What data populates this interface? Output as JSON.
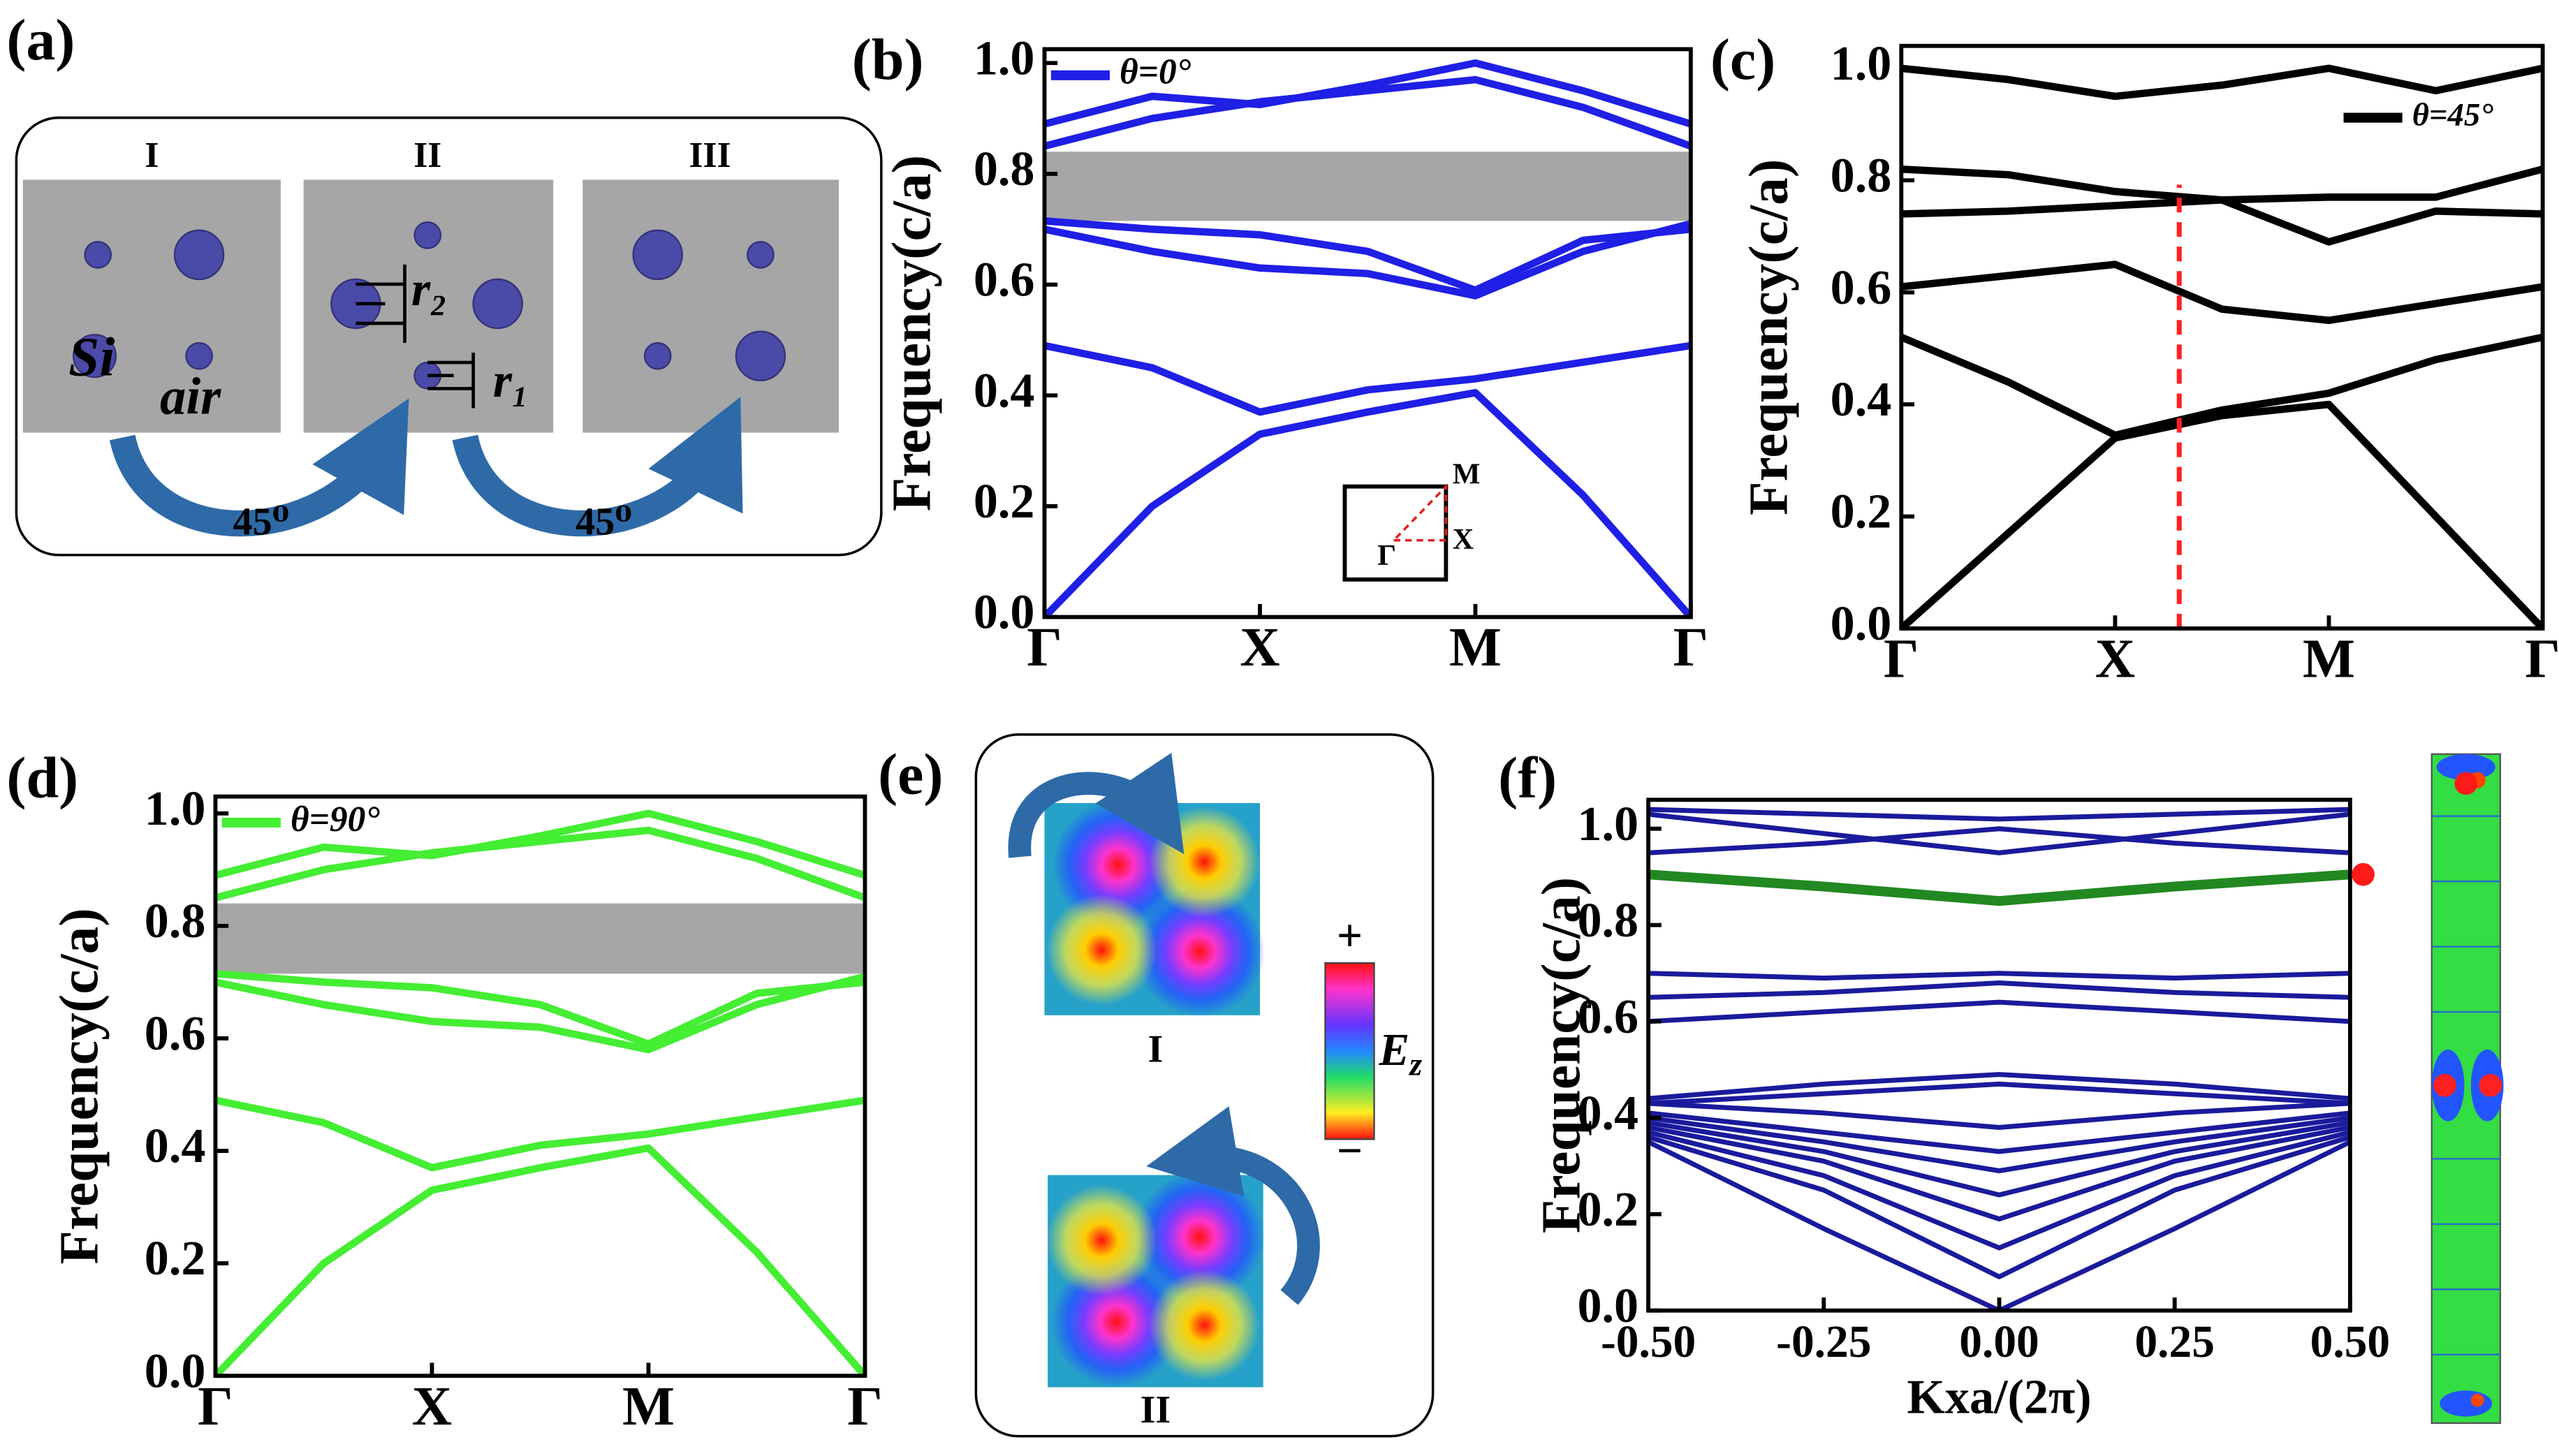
{
  "diagram_a": {
    "panel_label": "(a)",
    "cells": [
      "I",
      "II",
      "III"
    ],
    "material": "Si",
    "background": "air",
    "radius_labels": [
      "r₂",
      "r₁"
    ],
    "rotation_labels": [
      "45⁰",
      "45⁰"
    ]
  },
  "diagram_e": {
    "panel_label": "(e)",
    "maps": [
      "I",
      "II"
    ],
    "colorbar_max": "+",
    "colorbar_min": "−",
    "colorbar_label": "E",
    "colorbar_label_sub": "z"
  },
  "chart_data": [
    {
      "type": "line",
      "panel_label": "(b)",
      "y_label": "Frequency(c/a)",
      "legend_label": "θ=0°",
      "legend": "upper left",
      "color": "#1f1fe6",
      "x": [
        0,
        5,
        10,
        15,
        20,
        25,
        30
      ],
      "xlim": [
        0,
        30
      ],
      "xticks": [
        {
          "value": 0,
          "label": "Γ"
        },
        {
          "value": 10,
          "label": "X"
        },
        {
          "value": 20,
          "label": "M"
        },
        {
          "value": 30,
          "label": "Γ"
        }
      ],
      "ylim": [
        0,
        1.025
      ],
      "yticks": [
        {
          "value": 0,
          "label": "0.0"
        },
        {
          "value": 0.2,
          "label": "0.2"
        },
        {
          "value": 0.4,
          "label": "0.4"
        },
        {
          "value": 0.6,
          "label": "0.6"
        },
        {
          "value": 0.8,
          "label": "0.8"
        },
        {
          "value": 1,
          "label": "1.0"
        }
      ],
      "gap": [
        0.715,
        0.84
      ],
      "inset": [
        "M",
        "X",
        "Γ"
      ],
      "series": [
        {
          "values": [
            0,
            0.2,
            0.33,
            0.37,
            0.405,
            0.22,
            0
          ]
        },
        {
          "values": [
            0.49,
            0.45,
            0.37,
            0.41,
            0.43,
            0.46,
            0.49
          ]
        },
        {
          "values": [
            0.7,
            0.66,
            0.63,
            0.62,
            0.58,
            0.66,
            0.71
          ]
        },
        {
          "values": [
            0.715,
            0.7,
            0.69,
            0.66,
            0.59,
            0.68,
            0.7
          ]
        },
        {
          "values": [
            0.85,
            0.9,
            0.93,
            0.95,
            0.97,
            0.92,
            0.85
          ]
        },
        {
          "values": [
            0.89,
            0.94,
            0.925,
            0.96,
            1.0,
            0.95,
            0.89
          ]
        }
      ]
    },
    {
      "type": "line",
      "panel_label": "(c)",
      "y_label": "Frequency(c/a)",
      "legend_label": "θ=45°",
      "legend": "upper right",
      "color": "#000000",
      "x": [
        0,
        5,
        10,
        15,
        20,
        25,
        30
      ],
      "xlim": [
        0,
        30
      ],
      "xticks": [
        {
          "value": 0,
          "label": "Γ"
        },
        {
          "value": 10,
          "label": "X"
        },
        {
          "value": 20,
          "label": "M"
        },
        {
          "value": 30,
          "label": "Γ"
        }
      ],
      "ylim": [
        0,
        1.04
      ],
      "yticks": [
        {
          "value": 0,
          "label": "0.0"
        },
        {
          "value": 0.2,
          "label": "0.2"
        },
        {
          "value": 0.4,
          "label": "0.4"
        },
        {
          "value": 0.6,
          "label": "0.6"
        },
        {
          "value": 0.8,
          "label": "0.8"
        },
        {
          "value": 1,
          "label": "1.0"
        }
      ],
      "marker_x": 13,
      "marker_color": "#ff2020",
      "series": [
        {
          "values": [
            0,
            0.17,
            0.34,
            0.38,
            0.4,
            0.2,
            0
          ]
        },
        {
          "values": [
            0.52,
            0.44,
            0.345,
            0.39,
            0.42,
            0.48,
            0.52
          ]
        },
        {
          "values": [
            0.61,
            0.63,
            0.65,
            0.57,
            0.55,
            0.58,
            0.61
          ]
        },
        {
          "values": [
            0.74,
            0.745,
            0.755,
            0.765,
            0.69,
            0.745,
            0.74
          ]
        },
        {
          "values": [
            0.82,
            0.81,
            0.78,
            0.765,
            0.77,
            0.77,
            0.82
          ]
        },
        {
          "values": [
            1.0,
            0.98,
            0.95,
            0.97,
            1.0,
            0.96,
            1.0
          ]
        }
      ]
    },
    {
      "type": "line",
      "panel_label": "(d)",
      "y_label": "Frequency(c/a)",
      "legend_label": "θ=90°",
      "legend": "upper left",
      "color": "#44ee33",
      "x": [
        0,
        5,
        10,
        15,
        20,
        25,
        30
      ],
      "xlim": [
        0,
        30
      ],
      "xticks": [
        {
          "value": 0,
          "label": "Γ"
        },
        {
          "value": 10,
          "label": "X"
        },
        {
          "value": 20,
          "label": "M"
        },
        {
          "value": 30,
          "label": "Γ"
        }
      ],
      "ylim": [
        0,
        1.03
      ],
      "yticks": [
        {
          "value": 0,
          "label": "0.0"
        },
        {
          "value": 0.2,
          "label": "0.2"
        },
        {
          "value": 0.4,
          "label": "0.4"
        },
        {
          "value": 0.6,
          "label": "0.6"
        },
        {
          "value": 0.8,
          "label": "0.8"
        },
        {
          "value": 1,
          "label": "1.0"
        }
      ],
      "gap": [
        0.715,
        0.84
      ],
      "series": [
        {
          "values": [
            0,
            0.2,
            0.33,
            0.37,
            0.405,
            0.22,
            0
          ]
        },
        {
          "values": [
            0.49,
            0.45,
            0.37,
            0.41,
            0.43,
            0.46,
            0.49
          ]
        },
        {
          "values": [
            0.7,
            0.66,
            0.63,
            0.62,
            0.58,
            0.66,
            0.71
          ]
        },
        {
          "values": [
            0.715,
            0.7,
            0.69,
            0.66,
            0.59,
            0.68,
            0.7
          ]
        },
        {
          "values": [
            0.85,
            0.9,
            0.93,
            0.95,
            0.97,
            0.92,
            0.85
          ]
        },
        {
          "values": [
            0.89,
            0.94,
            0.925,
            0.96,
            1.0,
            0.95,
            0.89
          ]
        }
      ]
    },
    {
      "type": "line",
      "panel_label": "(f)",
      "y_label": "Frequency(c/a)",
      "x_label": "Kxa/(2π)",
      "color": "#1a1a9c",
      "x": [
        -0.5,
        -0.25,
        0,
        0.25,
        0.5
      ],
      "xlim": [
        -0.5,
        0.5
      ],
      "xticks": [
        {
          "value": -0.5,
          "label": "-0.50"
        },
        {
          "value": -0.25,
          "label": "-0.25"
        },
        {
          "value": 0,
          "label": "0.00"
        },
        {
          "value": 0.25,
          "label": "0.25"
        },
        {
          "value": 0.5,
          "label": "0.50"
        }
      ],
      "ylim": [
        0,
        1.06
      ],
      "yticks": [
        {
          "value": 0,
          "label": "0.0"
        },
        {
          "value": 0.2,
          "label": "0.2"
        },
        {
          "value": 0.4,
          "label": "0.4"
        },
        {
          "value": 0.6,
          "label": "0.6"
        },
        {
          "value": 0.8,
          "label": "0.8"
        },
        {
          "value": 1,
          "label": "1.0"
        }
      ],
      "highlight_point": [
        0.5,
        0.905
      ],
      "highlight_color": "#ff1a1a",
      "series": [
        {
          "values": [
            0.35,
            0.17,
            0,
            0.17,
            0.35
          ]
        },
        {
          "values": [
            0.36,
            0.25,
            0.07,
            0.25,
            0.36
          ]
        },
        {
          "values": [
            0.37,
            0.28,
            0.13,
            0.28,
            0.37
          ]
        },
        {
          "values": [
            0.38,
            0.31,
            0.19,
            0.31,
            0.38
          ]
        },
        {
          "values": [
            0.39,
            0.33,
            0.24,
            0.33,
            0.39
          ]
        },
        {
          "values": [
            0.4,
            0.35,
            0.29,
            0.35,
            0.4
          ]
        },
        {
          "values": [
            0.41,
            0.37,
            0.33,
            0.37,
            0.41
          ]
        },
        {
          "values": [
            0.43,
            0.41,
            0.38,
            0.41,
            0.43
          ]
        },
        {
          "values": [
            0.43,
            0.45,
            0.47,
            0.45,
            0.43
          ]
        },
        {
          "values": [
            0.44,
            0.47,
            0.49,
            0.47,
            0.44
          ]
        },
        {
          "values": [
            0.6,
            0.62,
            0.64,
            0.62,
            0.6
          ]
        },
        {
          "values": [
            0.65,
            0.66,
            0.68,
            0.66,
            0.65
          ]
        },
        {
          "values": [
            0.7,
            0.69,
            0.7,
            0.69,
            0.7
          ]
        },
        {
          "values": [
            0.905,
            0.88,
            0.85,
            0.88,
            0.905
          ],
          "color": "#228822"
        },
        {
          "values": [
            0.95,
            0.97,
            1.0,
            0.97,
            0.95
          ]
        },
        {
          "values": [
            1.03,
            0.99,
            0.95,
            0.99,
            1.03
          ]
        },
        {
          "values": [
            1.04,
            1.03,
            1.02,
            1.03,
            1.04
          ]
        }
      ]
    }
  ]
}
